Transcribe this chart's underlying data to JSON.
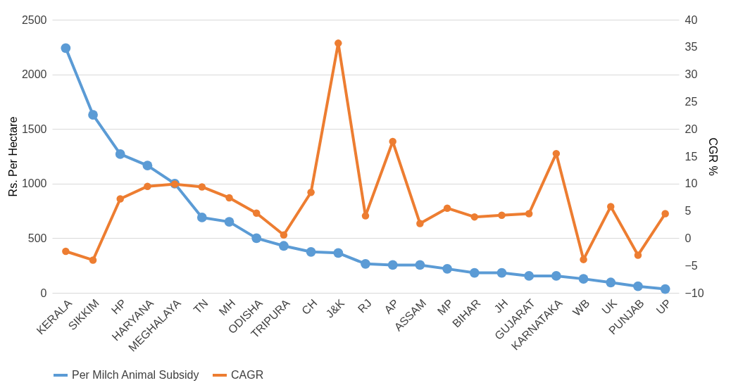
{
  "chart_data": {
    "type": "line",
    "ylabel": "Rs. Per Hectare",
    "y2label": "CGR %",
    "categories": [
      "KERALA",
      "SIKKIM",
      "HP",
      "HARYANA",
      "MEGHALAYA",
      "TN",
      "MH",
      "ODISHA",
      "TRIPURA",
      "CH",
      "J&K",
      "RJ",
      "AP",
      "ASSAM",
      "MP",
      "BIHAR",
      "JH",
      "GUJARAT",
      "KARNATAKA",
      "WB",
      "UK",
      "PUNJAB",
      "UP"
    ],
    "series": [
      {
        "name": "Per Milch Animal Subsidy",
        "color": "#5b9bd5",
        "values": [
          2240,
          1630,
          1270,
          1165,
          1000,
          690,
          650,
          500,
          430,
          375,
          365,
          265,
          255,
          255,
          220,
          183,
          183,
          155,
          155,
          128,
          95,
          60,
          35
        ]
      },
      {
        "name": "CAGR",
        "color": "#ed7d31",
        "axis": "y2",
        "values": [
          -2.4,
          -4.0,
          7.2,
          9.5,
          9.9,
          9.4,
          7.4,
          4.6,
          0.6,
          8.4,
          35.7,
          4.1,
          17.7,
          2.7,
          5.5,
          3.9,
          4.2,
          4.5,
          15.5,
          -3.9,
          5.8,
          -3.1,
          4.5
        ]
      }
    ],
    "ylim": [
      0,
      2500
    ],
    "yticks": [
      0,
      500,
      1000,
      1500,
      2000,
      2500
    ],
    "y2lim": [
      -10,
      40
    ],
    "y2ticks": [
      -10,
      -5,
      0,
      5,
      10,
      15,
      20,
      25,
      30,
      35,
      40
    ],
    "grid": "y",
    "legend": "bottom",
    "marker": "circle",
    "line_style": "solid"
  }
}
